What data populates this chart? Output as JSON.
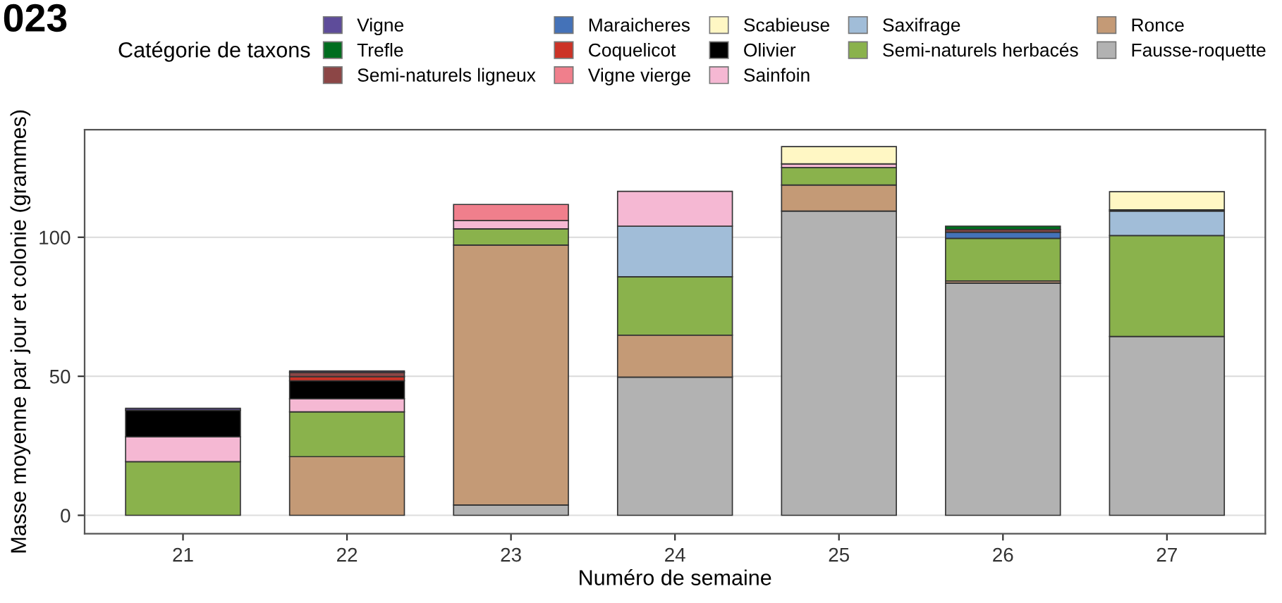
{
  "chart_data": {
    "type": "bar",
    "stacked": true,
    "title": "023",
    "xlabel": "Numéro de semaine",
    "ylabel": "Masse moyenne par jour et colonie (grammes)",
    "legend_title": "Catégorie de taxons",
    "categories": [
      "21",
      "22",
      "23",
      "24",
      "25",
      "26",
      "27"
    ],
    "series": [
      {
        "name": "Fausse-roquette",
        "color": "#b2b2b2",
        "values": [
          null,
          null,
          3.7,
          49.7,
          109.4,
          83.5,
          64.3
        ]
      },
      {
        "name": "Ronce",
        "color": "#c49a76",
        "values": [
          null,
          21.1,
          93.5,
          15.1,
          9.4,
          0.8,
          null
        ]
      },
      {
        "name": "Semi-naturels herbacés",
        "color": "#8ab24c",
        "values": [
          19.3,
          16.1,
          5.8,
          21,
          6.3,
          15.3,
          36.3
        ]
      },
      {
        "name": "Saxifrage",
        "color": "#a1bdd8",
        "values": [
          null,
          null,
          null,
          18.2,
          null,
          null,
          8.8
        ]
      },
      {
        "name": "Sainfoin",
        "color": "#f5b8d3",
        "values": [
          8.9,
          4.7,
          3,
          12.5,
          1.3,
          null,
          null
        ]
      },
      {
        "name": "Olivier",
        "color": "#000000",
        "values": [
          9.6,
          6.5,
          null,
          null,
          null,
          null,
          0.5
        ]
      },
      {
        "name": "Scabieuse",
        "color": "#fff7c4",
        "values": [
          null,
          null,
          null,
          null,
          6.2,
          null,
          6.5
        ]
      },
      {
        "name": "Vigne vierge",
        "color": "#f07f8c",
        "values": [
          null,
          null,
          5.8,
          null,
          null,
          null,
          null
        ]
      },
      {
        "name": "Coquelicot",
        "color": "#cc3327",
        "values": [
          null,
          1.5,
          null,
          null,
          null,
          null,
          null
        ]
      },
      {
        "name": "Maraicheres",
        "color": "#4472b8",
        "values": [
          null,
          null,
          null,
          null,
          null,
          2.2,
          null
        ]
      },
      {
        "name": "Semi-naturels ligneux",
        "color": "#8c4646",
        "values": [
          null,
          1.5,
          null,
          null,
          null,
          1.0,
          null
        ]
      },
      {
        "name": "Trefle",
        "color": "#006d1f",
        "values": [
          null,
          null,
          null,
          null,
          null,
          1.2,
          null
        ]
      },
      {
        "name": "Vigne",
        "color": "#5e4c9a",
        "values": [
          0.7,
          0.5,
          null,
          null,
          null,
          null,
          null
        ]
      }
    ],
    "ylim": [
      -6.6,
      138.7
    ],
    "yticks": [
      0,
      50,
      100
    ],
    "grid": "y",
    "legend": "top"
  }
}
